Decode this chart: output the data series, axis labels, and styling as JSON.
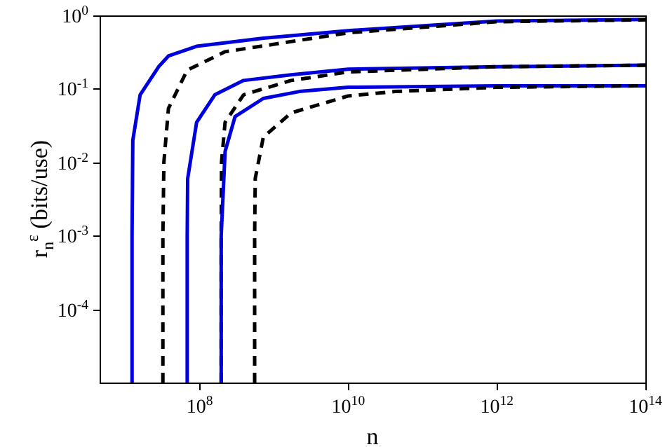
{
  "chart_data": {
    "type": "line",
    "xlabel": "n",
    "ylabel": "r$_{n}$$^{ε}$ (bits/use)",
    "log": "xy",
    "grid": false,
    "xlim": [
      4500000.0,
      100000000000000.0
    ],
    "ylim": [
      1e-05,
      1
    ],
    "xticks": [
      {
        "value": 100000000.0,
        "label": "10$^{8}$"
      },
      {
        "value": 10000000000.0,
        "label": "10$^{10}$"
      },
      {
        "value": 1000000000000.0,
        "label": "10$^{12}$"
      },
      {
        "value": 100000000000000.0,
        "label": "10$^{14}$"
      }
    ],
    "yticks": [
      {
        "value": 0.0001,
        "label": "10$^{-4}$"
      },
      {
        "value": 0.001,
        "label": "10$^{-3}$"
      },
      {
        "value": 0.01,
        "label": "10$^{-2}$"
      },
      {
        "value": 0.1,
        "label": "10$^{-1}$"
      },
      {
        "value": 1,
        "label": "10$^{0}$"
      }
    ],
    "series": [
      {
        "color": "#0000dd",
        "line_style": "solid",
        "x": [
          12300000.0,
          12300000.0,
          12600000.0,
          15800000.0,
          28000000.0,
          38000000.0,
          91000000.0,
          720000000.0,
          10000000000.0,
          1000000000000.0,
          100000000000000.0
        ],
        "values": [
          1e-05,
          0.001,
          0.02,
          0.083,
          0.2,
          0.28,
          0.38,
          0.49,
          0.62,
          0.84,
          0.88
        ]
      },
      {
        "color": "#000000",
        "line_style": "dashed",
        "x": [
          32000000.0,
          32000000.0,
          33000000.0,
          38000000.0,
          68000000.0,
          220000000.0,
          10000000000.0,
          1000000000000.0,
          100000000000000.0
        ],
        "values": [
          1e-05,
          0.001,
          0.01,
          0.054,
          0.18,
          0.32,
          0.58,
          0.82,
          0.87
        ]
      },
      {
        "color": "#0000dd",
        "line_style": "solid",
        "x": [
          68000000.0,
          68000000.0,
          69000000.0,
          91000000.0,
          160000000.0,
          390000000.0,
          1700000000.0,
          10000000000.0,
          1000000000000.0,
          100000000000000.0
        ],
        "values": [
          1e-05,
          0.001,
          0.006,
          0.035,
          0.083,
          0.13,
          0.155,
          0.185,
          0.2,
          0.21
        ]
      },
      {
        "color": "#000000",
        "line_style": "dashed",
        "x": [
          195000000.0,
          195000000.0,
          197000000.0,
          220000000.0,
          390000000.0,
          1700000000.0,
          10000000000.0,
          1000000000000.0,
          100000000000000.0
        ],
        "values": [
          1e-05,
          0.001,
          0.01,
          0.035,
          0.083,
          0.13,
          0.17,
          0.2,
          0.21
        ]
      },
      {
        "color": "#0000dd",
        "line_style": "solid",
        "x": [
          195000000.0,
          195000000.0,
          220000000.0,
          300000000.0,
          720000000.0,
          2200000000.0,
          10000000000.0,
          1000000000000.0,
          100000000000000.0
        ],
        "values": [
          1e-05,
          0.001,
          0.014,
          0.042,
          0.074,
          0.092,
          0.105,
          0.11,
          0.11
        ]
      },
      {
        "color": "#000000",
        "line_style": "dashed",
        "x": [
          550000000.0,
          550000000.0,
          560000000.0,
          720000000.0,
          1700000000.0,
          10000000000.0,
          43000000000.0,
          1000000000000.0,
          100000000000000.0
        ],
        "values": [
          1e-05,
          0.001,
          0.006,
          0.022,
          0.047,
          0.08,
          0.092,
          0.105,
          0.11
        ]
      }
    ]
  }
}
